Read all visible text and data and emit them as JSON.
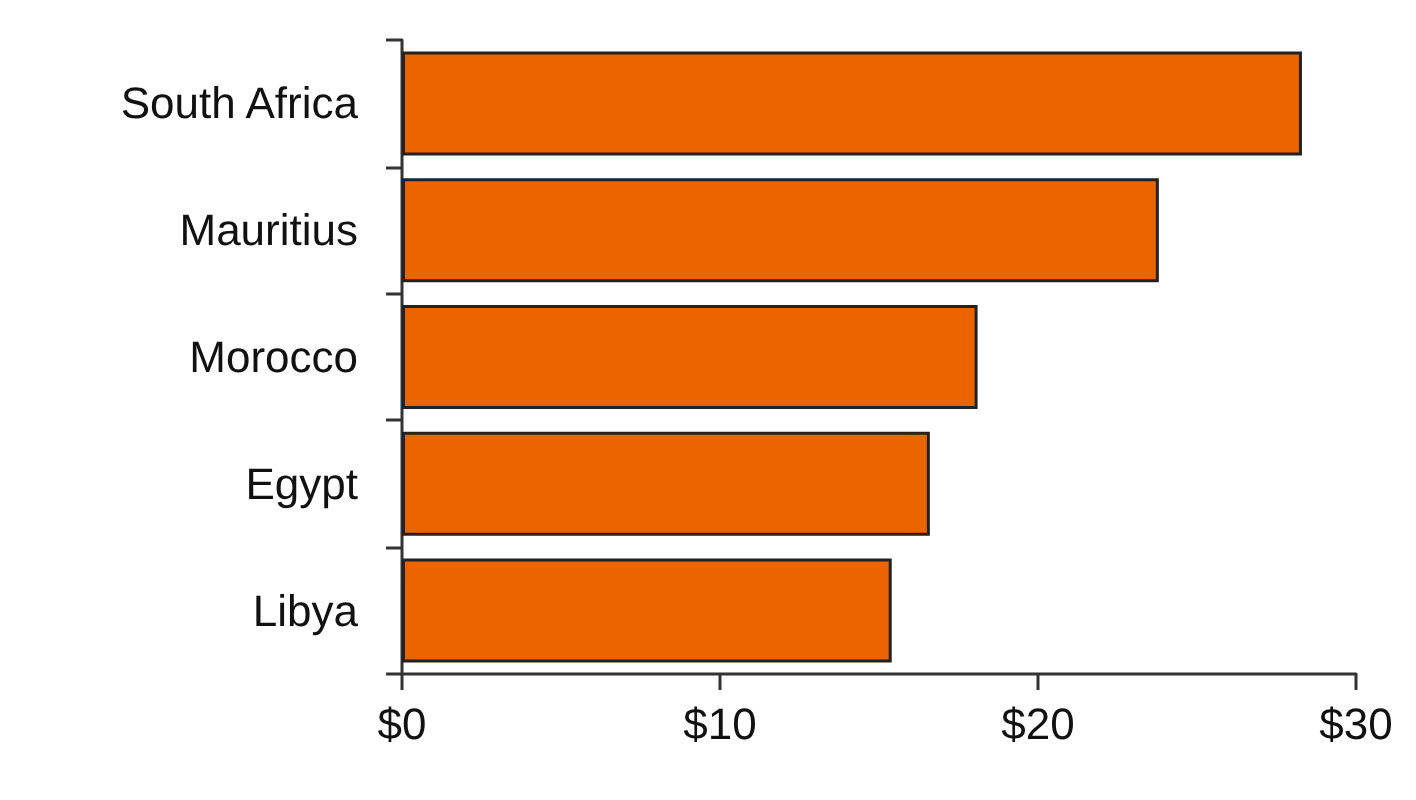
{
  "chart_data": {
    "type": "bar",
    "orientation": "horizontal",
    "categories": [
      "South Africa",
      "Mauritius",
      "Morocco",
      "Egypt",
      "Libya"
    ],
    "values": [
      28.3,
      23.8,
      18.1,
      16.6,
      15.4
    ],
    "color": "#ec6400",
    "xlim": [
      0,
      30
    ],
    "xticks": [
      {
        "value": 0,
        "label": "$0"
      },
      {
        "value": 10,
        "label": "$10"
      },
      {
        "value": 20,
        "label": "$20"
      },
      {
        "value": 30,
        "label": "$30"
      }
    ],
    "grid": false
  }
}
